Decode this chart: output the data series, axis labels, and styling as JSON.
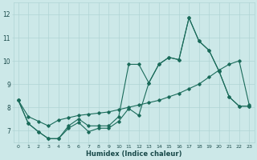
{
  "xlabel": "Humidex (Indice chaleur)",
  "xlim": [
    -0.5,
    23.5
  ],
  "ylim": [
    6.5,
    12.5
  ],
  "yticks": [
    7,
    8,
    9,
    10,
    11,
    12
  ],
  "xticks": [
    0,
    1,
    2,
    3,
    4,
    5,
    6,
    7,
    8,
    9,
    10,
    11,
    12,
    13,
    14,
    15,
    16,
    17,
    18,
    19,
    20,
    21,
    22,
    23
  ],
  "bg_color": "#cce8e8",
  "grid_color": "#b0d4d4",
  "line_color": "#1a6b5a",
  "line1_x": [
    0,
    1,
    2,
    3,
    4,
    5,
    6,
    7,
    8,
    9,
    10,
    11,
    12,
    13,
    14,
    15,
    16,
    17,
    18,
    19,
    20,
    21,
    22,
    23
  ],
  "line1_y": [
    8.3,
    7.3,
    6.95,
    6.65,
    6.65,
    7.1,
    7.35,
    6.95,
    7.1,
    7.1,
    7.4,
    7.95,
    7.65,
    9.05,
    9.85,
    10.15,
    10.05,
    11.85,
    10.85,
    10.45,
    9.55,
    8.45,
    8.05,
    8.05
  ],
  "line2_x": [
    0,
    1,
    2,
    3,
    4,
    5,
    6,
    7,
    8,
    9,
    10,
    11,
    12,
    13,
    14,
    15,
    16,
    17,
    18,
    19,
    20,
    21,
    22,
    23
  ],
  "line2_y": [
    8.3,
    7.3,
    6.95,
    6.65,
    6.65,
    7.2,
    7.5,
    7.2,
    7.2,
    7.2,
    7.6,
    9.85,
    9.85,
    9.05,
    9.85,
    10.15,
    10.05,
    11.85,
    10.85,
    10.45,
    9.55,
    8.45,
    8.05,
    8.05
  ],
  "line3_x": [
    0,
    1,
    2,
    3,
    4,
    5,
    6,
    7,
    8,
    9,
    10,
    11,
    12,
    13,
    14,
    15,
    16,
    17,
    18,
    19,
    20,
    21,
    22,
    23
  ],
  "line3_y": [
    8.3,
    7.6,
    7.4,
    7.2,
    7.45,
    7.55,
    7.65,
    7.7,
    7.75,
    7.8,
    7.9,
    8.0,
    8.1,
    8.2,
    8.3,
    8.45,
    8.6,
    8.8,
    9.0,
    9.3,
    9.6,
    9.85,
    10.0,
    8.1
  ]
}
